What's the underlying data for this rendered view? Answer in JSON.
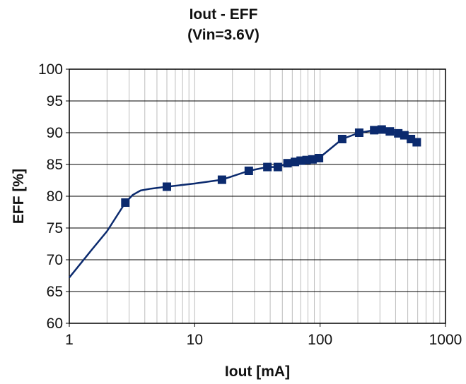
{
  "chart_data": {
    "type": "line",
    "title": "Iout - EFF",
    "subtitle": "(Vin=3.6V)",
    "xlabel": "Iout [mA]",
    "ylabel": "EFF [%]",
    "xscale": "log",
    "xlim": [
      1,
      1000
    ],
    "ylim": [
      60,
      100
    ],
    "xticks": [
      1,
      10,
      100,
      1000
    ],
    "xtick_labels": [
      "1",
      "10",
      "100",
      "1000"
    ],
    "yticks": [
      60,
      65,
      70,
      75,
      80,
      85,
      90,
      95,
      100
    ],
    "ytick_labels": [
      "60",
      "65",
      "70",
      "75",
      "80",
      "85",
      "90",
      "95",
      "100"
    ],
    "grid": true,
    "legend": "none",
    "series": [
      {
        "color": "#0b2a6e",
        "marker": "square",
        "points": [
          [
            2.8,
            79.0
          ],
          [
            6.0,
            81.5
          ],
          [
            16.5,
            82.6
          ],
          [
            27.0,
            84.0
          ],
          [
            38.0,
            84.6
          ],
          [
            46.0,
            84.6
          ],
          [
            55.0,
            85.2
          ],
          [
            63.0,
            85.4
          ],
          [
            70.0,
            85.6
          ],
          [
            78.0,
            85.7
          ],
          [
            87.0,
            85.8
          ],
          [
            98.0,
            86.0
          ],
          [
            150.0,
            89.0
          ],
          [
            205.0,
            90.0
          ],
          [
            270.0,
            90.4
          ],
          [
            310.0,
            90.5
          ],
          [
            360.0,
            90.2
          ],
          [
            420.0,
            89.9
          ],
          [
            470.0,
            89.6
          ],
          [
            530.0,
            89.0
          ],
          [
            590.0,
            88.5
          ]
        ],
        "curve": [
          [
            1.0,
            67.2
          ],
          [
            1.5,
            71.5
          ],
          [
            2.0,
            74.5
          ],
          [
            2.8,
            79.0
          ],
          [
            3.2,
            80.2
          ],
          [
            3.7,
            80.9
          ],
          [
            4.5,
            81.2
          ],
          [
            6.0,
            81.5
          ],
          [
            10.0,
            82.0
          ],
          [
            16.5,
            82.6
          ],
          [
            27.0,
            84.0
          ],
          [
            38.0,
            84.6
          ],
          [
            46.0,
            84.6
          ],
          [
            55.0,
            85.2
          ],
          [
            63.0,
            85.4
          ],
          [
            70.0,
            85.6
          ],
          [
            78.0,
            85.7
          ],
          [
            87.0,
            85.8
          ],
          [
            98.0,
            86.0
          ],
          [
            150.0,
            89.0
          ],
          [
            205.0,
            90.0
          ],
          [
            270.0,
            90.4
          ],
          [
            310.0,
            90.5
          ],
          [
            360.0,
            90.2
          ],
          [
            420.0,
            89.9
          ],
          [
            470.0,
            89.6
          ],
          [
            530.0,
            89.0
          ],
          [
            590.0,
            88.5
          ]
        ]
      }
    ]
  }
}
